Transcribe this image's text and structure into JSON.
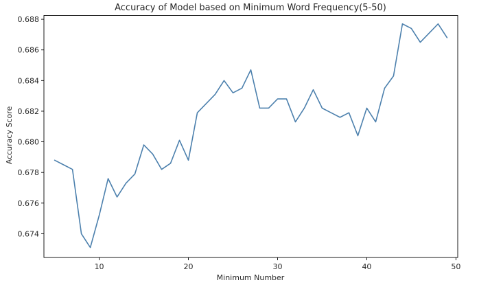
{
  "chart_data": {
    "type": "line",
    "title": "Accuracy of Model based on Minimum Word Frequency(5-50)",
    "xlabel": "Minimum Number",
    "ylabel": "Accuracy Score",
    "xlim": [
      3.8,
      50.2
    ],
    "ylim": [
      0.67245,
      0.68825
    ],
    "xticks": [
      10,
      20,
      30,
      40,
      50
    ],
    "yticks": [
      0.674,
      0.676,
      0.678,
      0.68,
      0.682,
      0.684,
      0.686,
      0.688
    ],
    "xtick_labels": [
      "10",
      "20",
      "30",
      "40",
      "50"
    ],
    "ytick_labels": [
      "0.674",
      "0.676",
      "0.678",
      "0.680",
      "0.682",
      "0.684",
      "0.686",
      "0.688"
    ],
    "grid": false,
    "line_color": "#4c80ad",
    "x": [
      5,
      6,
      7,
      8,
      9,
      10,
      11,
      12,
      13,
      14,
      15,
      16,
      17,
      18,
      19,
      20,
      21,
      22,
      23,
      24,
      25,
      26,
      27,
      28,
      29,
      30,
      31,
      32,
      33,
      34,
      35,
      36,
      37,
      38,
      39,
      40,
      41,
      42,
      43,
      44,
      45,
      46,
      47,
      48,
      49
    ],
    "y": [
      0.6788,
      0.6785,
      0.6782,
      0.674,
      0.6731,
      0.6752,
      0.6776,
      0.6764,
      0.6773,
      0.6779,
      0.6798,
      0.6792,
      0.6782,
      0.6786,
      0.6801,
      0.6788,
      0.6819,
      0.6825,
      0.6831,
      0.684,
      0.6832,
      0.6835,
      0.6847,
      0.6822,
      0.6822,
      0.6828,
      0.6828,
      0.6813,
      0.6822,
      0.6834,
      0.6822,
      0.6819,
      0.6816,
      0.6819,
      0.6804,
      0.6822,
      0.6813,
      0.6835,
      0.6843,
      0.6877,
      0.6874,
      0.6865,
      0.6871,
      0.6877,
      0.6868
    ]
  }
}
